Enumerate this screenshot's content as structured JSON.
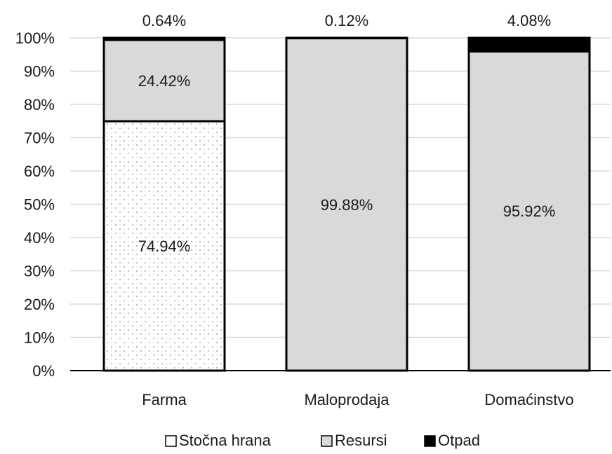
{
  "chart_data": {
    "type": "bar",
    "stacked": true,
    "categories": [
      "Farma",
      "Maloprodaja",
      "Domaćinstvo"
    ],
    "series": [
      {
        "name": "Stočna hrana",
        "values": [
          74.94,
          0,
          0
        ],
        "labels": [
          "74.94%",
          "",
          ""
        ],
        "fill": "dotted-pattern",
        "color": "#ffffff"
      },
      {
        "name": "Resursi",
        "values": [
          24.42,
          99.88,
          95.92
        ],
        "labels": [
          "24.42%",
          "99.88%",
          "95.92%"
        ],
        "color": "#d9d9d9"
      },
      {
        "name": "Otpad",
        "values": [
          0.64,
          0.12,
          4.08
        ],
        "labels": [
          "0.64%",
          "0.12%",
          "4.08%"
        ],
        "color": "#000000"
      }
    ],
    "y_ticks": [
      "0%",
      "10%",
      "20%",
      "30%",
      "40%",
      "50%",
      "60%",
      "70%",
      "80%",
      "90%",
      "100%"
    ],
    "ylim": [
      0,
      100
    ],
    "grid": true,
    "legend_position": "bottom-center"
  },
  "colors": {
    "gridline": "#d9d9d9",
    "axis": "#000000",
    "bar_outline": "#000000",
    "pattern_dot": "#a6a6a6"
  }
}
